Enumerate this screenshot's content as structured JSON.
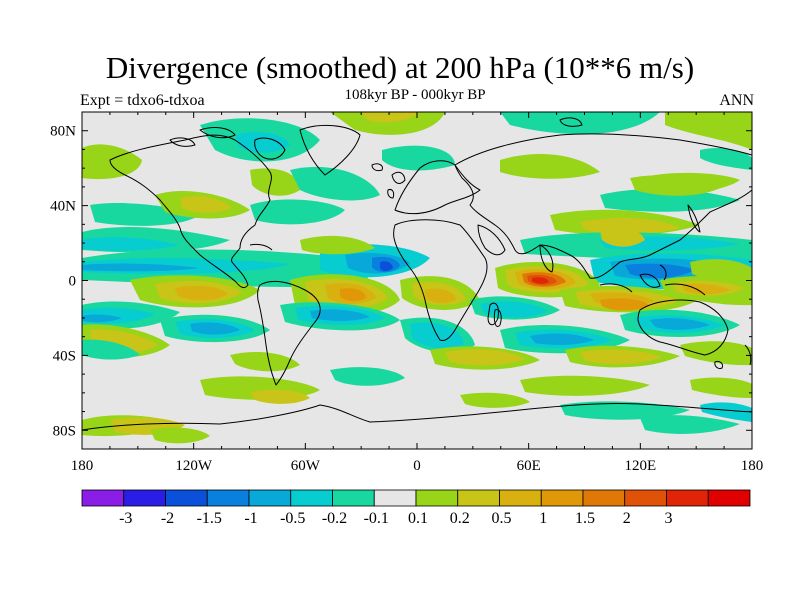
{
  "title": "Divergence (smoothed) at 200 hPa (10**6 m/s)",
  "subtitle": "108kyr BP - 000kyr BP",
  "left_note": "Expt = tdxo6-tdxoa",
  "right_note": "ANN",
  "lon_ticks": [
    {
      "lon": -180,
      "label": "180"
    },
    {
      "lon": -120,
      "label": "120W"
    },
    {
      "lon": -60,
      "label": "60W"
    },
    {
      "lon": 0,
      "label": "0"
    },
    {
      "lon": 60,
      "label": "60E"
    },
    {
      "lon": 120,
      "label": "120E"
    },
    {
      "lon": 180,
      "label": "180"
    }
  ],
  "lat_ticks": [
    {
      "lat": 80,
      "label": "80N"
    },
    {
      "lat": 40,
      "label": "40N"
    },
    {
      "lat": 0,
      "label": "0"
    },
    {
      "lat": -40,
      "label": "40S"
    },
    {
      "lat": -80,
      "label": "80S"
    }
  ],
  "colorbar": {
    "colors": [
      "#8a1ee6",
      "#2a1ee6",
      "#0b50d8",
      "#0a80de",
      "#08a8d8",
      "#08cdd0",
      "#18d8a0",
      "#e6e6e6",
      "#98d418",
      "#c8c418",
      "#d8b010",
      "#e09808",
      "#e07808",
      "#e05208",
      "#e02408",
      "#e00000"
    ],
    "labels": [
      "-3",
      "-2",
      "-1.5",
      "-1",
      "-0.5",
      "-0.2",
      "-0.1",
      "0.1",
      "0.2",
      "0.5",
      "1",
      "1.5",
      "2",
      "3"
    ]
  }
}
